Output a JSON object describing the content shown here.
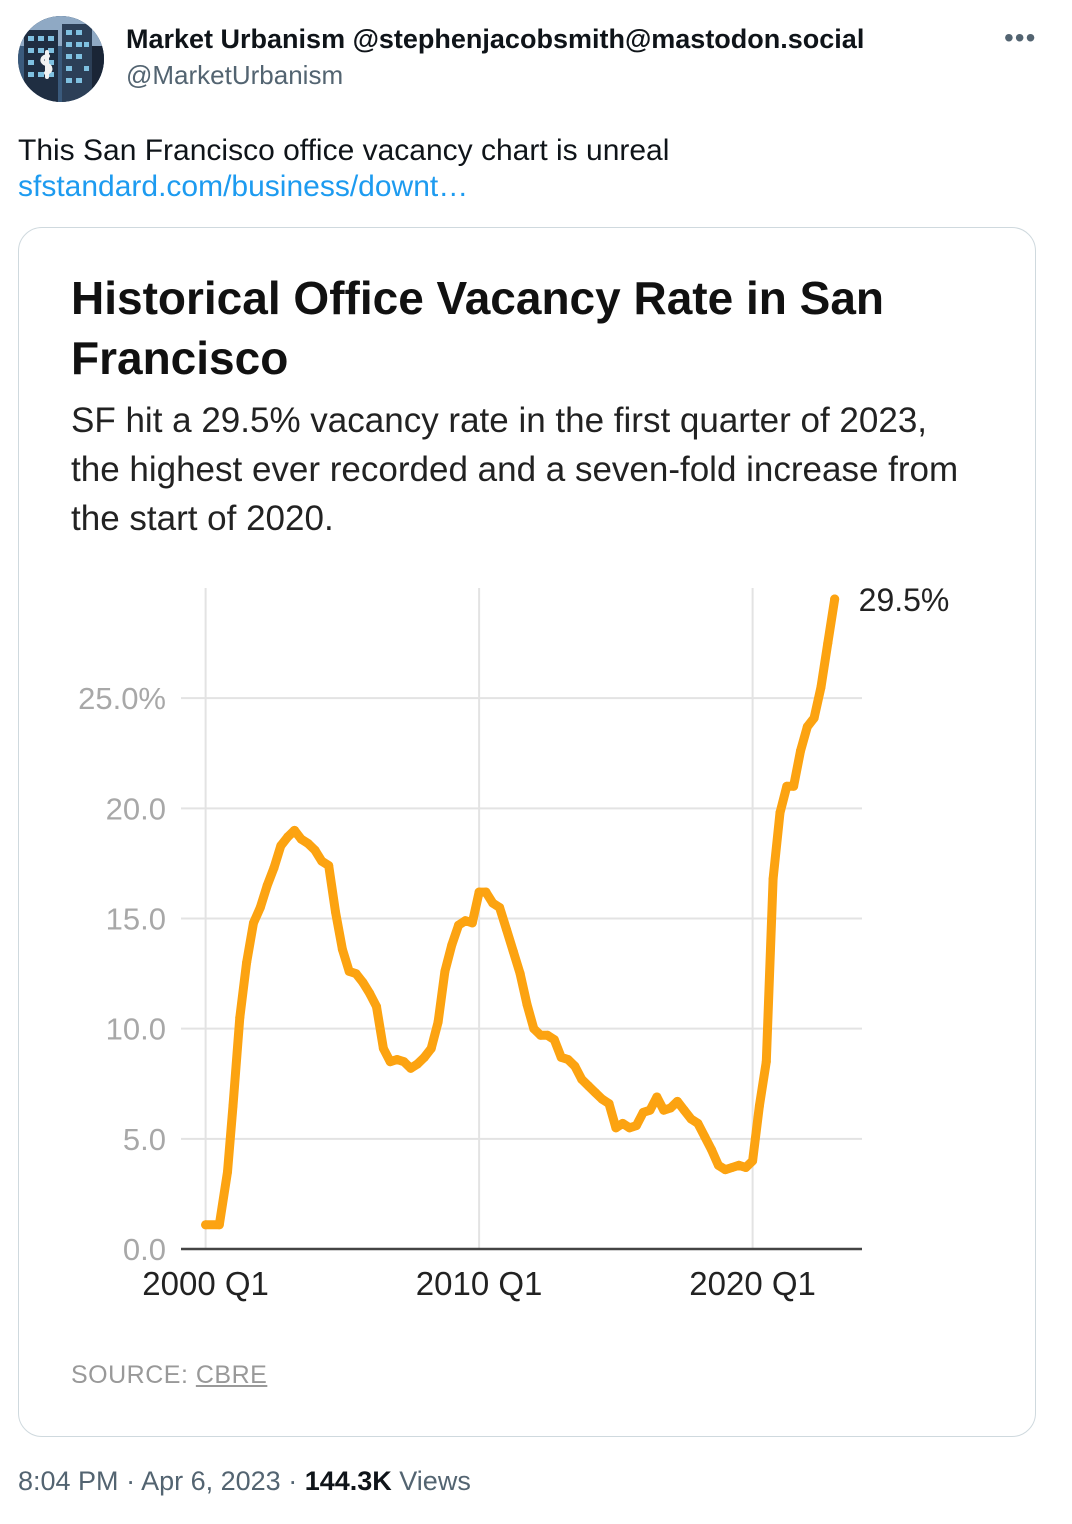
{
  "author": {
    "display_name": "Market Urbanism @stephenjacobsmith@mastodon.social",
    "handle": "@MarketUrbanism"
  },
  "more_icon": "more-horizontal-icon",
  "tweet": {
    "text": "This San Francisco office vacancy chart is unreal",
    "link_text": "sfstandard.com/business/downt…"
  },
  "card": {
    "source_prefix": "SOURCE: ",
    "source_link": "CBRE"
  },
  "colors": {
    "line": "#fca311",
    "link": "#1d9bf0",
    "muted": "#536471"
  },
  "meta": {
    "time": "8:04 PM",
    "date": "Apr 6, 2023",
    "views_count": "144.3K",
    "views_label": "Views"
  },
  "chart_data": {
    "type": "line",
    "title": "Historical Office Vacancy Rate in San Francisco",
    "subtitle": "SF hit a 29.5% vacancy rate in the first quarter of 2023, the highest ever recorded and a seven-fold increase from the start of 2020.",
    "xlabel": "",
    "ylabel": "",
    "x_ticks": [
      {
        "label": "2000 Q1",
        "value": 2000.0
      },
      {
        "label": "2010 Q1",
        "value": 2010.0
      },
      {
        "label": "2020 Q1",
        "value": 2020.0
      }
    ],
    "y_ticks": [
      {
        "label": "0.0",
        "value": 0
      },
      {
        "label": "5.0",
        "value": 5
      },
      {
        "label": "10.0",
        "value": 10
      },
      {
        "label": "15.0",
        "value": 15
      },
      {
        "label": "20.0",
        "value": 20
      },
      {
        "label": "25.0%",
        "value": 25
      }
    ],
    "xlim": [
      1999.1,
      2024.0
    ],
    "ylim": [
      0,
      30
    ],
    "grid": true,
    "end_label": "29.5%",
    "series": [
      {
        "name": "Office vacancy rate",
        "color": "#fca311",
        "points": [
          [
            2000.0,
            1.1
          ],
          [
            2000.5,
            1.1
          ],
          [
            2000.8,
            3.5
          ],
          [
            2001.0,
            6.5
          ],
          [
            2001.25,
            10.5
          ],
          [
            2001.5,
            13.0
          ],
          [
            2001.75,
            14.8
          ],
          [
            2002.0,
            15.5
          ],
          [
            2002.25,
            16.5
          ],
          [
            2002.5,
            17.3
          ],
          [
            2002.75,
            18.3
          ],
          [
            2003.0,
            18.7
          ],
          [
            2003.25,
            19.0
          ],
          [
            2003.5,
            18.6
          ],
          [
            2003.75,
            18.4
          ],
          [
            2004.0,
            18.1
          ],
          [
            2004.25,
            17.6
          ],
          [
            2004.5,
            17.4
          ],
          [
            2004.75,
            15.3
          ],
          [
            2005.0,
            13.6
          ],
          [
            2005.25,
            12.6
          ],
          [
            2005.5,
            12.5
          ],
          [
            2005.75,
            12.1
          ],
          [
            2006.0,
            11.6
          ],
          [
            2006.25,
            11.0
          ],
          [
            2006.5,
            9.1
          ],
          [
            2006.75,
            8.5
          ],
          [
            2007.0,
            8.6
          ],
          [
            2007.25,
            8.5
          ],
          [
            2007.5,
            8.2
          ],
          [
            2007.75,
            8.4
          ],
          [
            2008.0,
            8.7
          ],
          [
            2008.25,
            9.1
          ],
          [
            2008.5,
            10.3
          ],
          [
            2008.75,
            12.6
          ],
          [
            2009.0,
            13.8
          ],
          [
            2009.25,
            14.7
          ],
          [
            2009.5,
            14.9
          ],
          [
            2009.75,
            14.8
          ],
          [
            2010.0,
            16.2
          ],
          [
            2010.25,
            16.2
          ],
          [
            2010.5,
            15.7
          ],
          [
            2010.75,
            15.5
          ],
          [
            2011.0,
            14.5
          ],
          [
            2011.25,
            13.5
          ],
          [
            2011.5,
            12.5
          ],
          [
            2011.75,
            11.1
          ],
          [
            2012.0,
            10.0
          ],
          [
            2012.25,
            9.7
          ],
          [
            2012.5,
            9.7
          ],
          [
            2012.75,
            9.5
          ],
          [
            2013.0,
            8.7
          ],
          [
            2013.25,
            8.6
          ],
          [
            2013.5,
            8.3
          ],
          [
            2013.75,
            7.7
          ],
          [
            2014.0,
            7.4
          ],
          [
            2014.25,
            7.1
          ],
          [
            2014.5,
            6.8
          ],
          [
            2014.75,
            6.6
          ],
          [
            2015.0,
            5.5
          ],
          [
            2015.25,
            5.7
          ],
          [
            2015.5,
            5.5
          ],
          [
            2015.75,
            5.6
          ],
          [
            2016.0,
            6.2
          ],
          [
            2016.25,
            6.3
          ],
          [
            2016.5,
            6.9
          ],
          [
            2016.75,
            6.3
          ],
          [
            2017.0,
            6.4
          ],
          [
            2017.25,
            6.7
          ],
          [
            2017.5,
            6.3
          ],
          [
            2017.75,
            5.9
          ],
          [
            2018.0,
            5.7
          ],
          [
            2018.25,
            5.1
          ],
          [
            2018.5,
            4.5
          ],
          [
            2018.75,
            3.8
          ],
          [
            2019.0,
            3.6
          ],
          [
            2019.25,
            3.7
          ],
          [
            2019.5,
            3.8
          ],
          [
            2019.75,
            3.7
          ],
          [
            2020.0,
            4.0
          ],
          [
            2020.25,
            6.5
          ],
          [
            2020.5,
            8.5
          ],
          [
            2020.75,
            16.8
          ],
          [
            2021.0,
            19.8
          ],
          [
            2021.25,
            21.0
          ],
          [
            2021.5,
            21.0
          ],
          [
            2021.75,
            22.6
          ],
          [
            2022.0,
            23.7
          ],
          [
            2022.25,
            24.1
          ],
          [
            2022.5,
            25.5
          ],
          [
            2022.75,
            27.5
          ],
          [
            2023.0,
            29.5
          ]
        ]
      }
    ]
  }
}
